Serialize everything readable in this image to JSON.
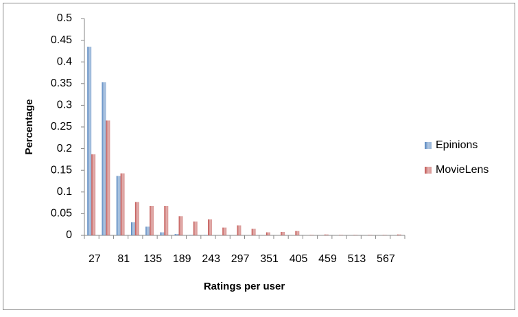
{
  "chart_data": {
    "type": "bar",
    "x_label": "Ratings per user",
    "y_label": "Percentage",
    "categories": [
      "27",
      null,
      "81",
      null,
      "135",
      null,
      "189",
      null,
      "243",
      null,
      "297",
      null,
      "351",
      null,
      "405",
      null,
      "459",
      null,
      "513",
      null,
      "567",
      null
    ],
    "series": [
      {
        "name": "Epinions",
        "color": "#4f81bd",
        "values": [
          0.435,
          0.353,
          0.137,
          0.03,
          0.02,
          0.007,
          0.003,
          0.001,
          0.001,
          0,
          0,
          0,
          0,
          0,
          0,
          0,
          0,
          0,
          0,
          0,
          0,
          0
        ]
      },
      {
        "name": "MovieLens",
        "color": "#c0504d",
        "values": [
          0.187,
          0.265,
          0.143,
          0.077,
          0.068,
          0.068,
          0.044,
          0.032,
          0.037,
          0.018,
          0.023,
          0.015,
          0.007,
          0.008,
          0.01,
          0.001,
          0.002,
          0.001,
          0.001,
          0.001,
          0.001,
          0.002
        ]
      }
    ],
    "ylim": [
      0,
      0.5
    ],
    "yticks": [
      0,
      0.05,
      0.1,
      0.15,
      0.2,
      0.25,
      0.3,
      0.35,
      0.4,
      0.45,
      0.5
    ],
    "grid": false,
    "legend": "right"
  }
}
